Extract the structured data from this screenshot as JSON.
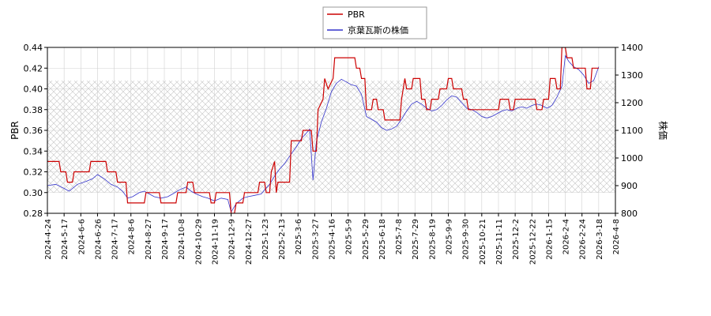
{
  "chart_data": {
    "type": "line",
    "ylabel_left": "PBR",
    "ylabel_right": "株価",
    "ylim_left": [
      0.28,
      0.44
    ],
    "ylim_right": [
      800,
      1400
    ],
    "yticks_left": [
      "0.28",
      "0.30",
      "0.32",
      "0.34",
      "0.36",
      "0.38",
      "0.40",
      "0.42",
      "0.44"
    ],
    "yticks_right": [
      "800",
      "900",
      "1000",
      "1100",
      "1200",
      "1300",
      "1400"
    ],
    "x_tick_labels": [
      "2024-4-24",
      "2024-5-17",
      "2024-6-6",
      "2024-6-26",
      "2024-7-17",
      "2024-8-6",
      "2024-8-27",
      "2024-9-17",
      "2024-10-8",
      "2024-10-29",
      "2024-11-19",
      "2024-12-9",
      "2024-12-27",
      "2025-1-23",
      "2025-2-13",
      "2025-3-6",
      "2025-3-27",
      "2025-4-16",
      "2025-5-9",
      "2025-5-29",
      "2025-6-18",
      "2025-7-8",
      "2025-7-29",
      "2025-8-19",
      "2025-9-9",
      "2025-9-30",
      "2025-10-21",
      "2025-11-11",
      "2025-12-2",
      "2025-12-22",
      "2026-1-15",
      "2026-2-4",
      "2026-2-24",
      "2026-3-18",
      "2026-4-8"
    ],
    "grid": true,
    "legend_position": "top-center",
    "series": [
      {
        "name": "PBR",
        "axis": "left",
        "color": "#cc0000",
        "points": [
          [
            0,
            0.33
          ],
          [
            0.7,
            0.33
          ],
          [
            0.8,
            0.32
          ],
          [
            1.1,
            0.32
          ],
          [
            1.2,
            0.31
          ],
          [
            1.5,
            0.31
          ],
          [
            1.6,
            0.32
          ],
          [
            2.5,
            0.32
          ],
          [
            2.6,
            0.33
          ],
          [
            3.5,
            0.33
          ],
          [
            3.6,
            0.32
          ],
          [
            4.1,
            0.32
          ],
          [
            4.2,
            0.31
          ],
          [
            4.7,
            0.31
          ],
          [
            4.8,
            0.29
          ],
          [
            5.8,
            0.29
          ],
          [
            5.9,
            0.3
          ],
          [
            6.7,
            0.3
          ],
          [
            6.8,
            0.29
          ],
          [
            7.7,
            0.29
          ],
          [
            7.8,
            0.3
          ],
          [
            8.3,
            0.3
          ],
          [
            8.4,
            0.31
          ],
          [
            8.7,
            0.31
          ],
          [
            8.8,
            0.3
          ],
          [
            9.7,
            0.3
          ],
          [
            9.8,
            0.29
          ],
          [
            10.0,
            0.29
          ],
          [
            10.1,
            0.3
          ],
          [
            10.9,
            0.3
          ],
          [
            11.0,
            0.28
          ],
          [
            11.2,
            0.28
          ],
          [
            11.3,
            0.29
          ],
          [
            11.7,
            0.29
          ],
          [
            11.8,
            0.3
          ],
          [
            12.6,
            0.3
          ],
          [
            12.7,
            0.31
          ],
          [
            13.0,
            0.31
          ],
          [
            13.1,
            0.3
          ],
          [
            13.3,
            0.3
          ],
          [
            13.4,
            0.32
          ],
          [
            13.6,
            0.33
          ],
          [
            13.7,
            0.3
          ],
          [
            13.8,
            0.31
          ],
          [
            14.5,
            0.31
          ],
          [
            14.6,
            0.35
          ],
          [
            15.2,
            0.35
          ],
          [
            15.3,
            0.36
          ],
          [
            15.8,
            0.36
          ],
          [
            15.9,
            0.34
          ],
          [
            16.1,
            0.34
          ],
          [
            16.2,
            0.38
          ],
          [
            16.5,
            0.39
          ],
          [
            16.6,
            0.41
          ],
          [
            16.8,
            0.4
          ],
          [
            17.1,
            0.41
          ],
          [
            17.2,
            0.43
          ],
          [
            18.4,
            0.43
          ],
          [
            18.5,
            0.42
          ],
          [
            18.7,
            0.42
          ],
          [
            18.8,
            0.41
          ],
          [
            19.0,
            0.41
          ],
          [
            19.1,
            0.38
          ],
          [
            19.4,
            0.38
          ],
          [
            19.5,
            0.39
          ],
          [
            19.7,
            0.39
          ],
          [
            19.8,
            0.38
          ],
          [
            20.1,
            0.38
          ],
          [
            20.2,
            0.37
          ],
          [
            21.1,
            0.37
          ],
          [
            21.2,
            0.39
          ],
          [
            21.4,
            0.41
          ],
          [
            21.5,
            0.4
          ],
          [
            21.8,
            0.4
          ],
          [
            21.9,
            0.41
          ],
          [
            22.3,
            0.41
          ],
          [
            22.4,
            0.39
          ],
          [
            22.6,
            0.39
          ],
          [
            22.7,
            0.38
          ],
          [
            22.9,
            0.38
          ],
          [
            23.0,
            0.39
          ],
          [
            23.4,
            0.39
          ],
          [
            23.5,
            0.4
          ],
          [
            23.9,
            0.4
          ],
          [
            24.0,
            0.41
          ],
          [
            24.2,
            0.41
          ],
          [
            24.3,
            0.4
          ],
          [
            24.8,
            0.4
          ],
          [
            24.9,
            0.39
          ],
          [
            25.1,
            0.39
          ],
          [
            25.2,
            0.38
          ],
          [
            27.0,
            0.38
          ],
          [
            27.1,
            0.39
          ],
          [
            27.6,
            0.39
          ],
          [
            27.7,
            0.38
          ],
          [
            27.9,
            0.38
          ],
          [
            28.0,
            0.39
          ],
          [
            29.2,
            0.39
          ],
          [
            29.3,
            0.38
          ],
          [
            29.6,
            0.38
          ],
          [
            29.7,
            0.39
          ],
          [
            30.0,
            0.39
          ],
          [
            30.1,
            0.41
          ],
          [
            30.4,
            0.41
          ],
          [
            30.5,
            0.4
          ],
          [
            30.7,
            0.4
          ],
          [
            30.8,
            0.44
          ],
          [
            31.0,
            0.44
          ],
          [
            31.1,
            0.43
          ],
          [
            31.4,
            0.43
          ],
          [
            31.5,
            0.42
          ],
          [
            32.2,
            0.42
          ],
          [
            32.3,
            0.4
          ],
          [
            32.5,
            0.4
          ],
          [
            32.6,
            0.42
          ],
          [
            33.0,
            0.42
          ]
        ]
      },
      {
        "name": "京葉瓦斯の株価",
        "axis": "right",
        "color": "#3333cc",
        "points": [
          [
            0,
            900
          ],
          [
            0.5,
            905
          ],
          [
            1.0,
            890
          ],
          [
            1.3,
            880
          ],
          [
            1.8,
            905
          ],
          [
            2.3,
            915
          ],
          [
            2.7,
            925
          ],
          [
            3.0,
            940
          ],
          [
            3.4,
            925
          ],
          [
            3.8,
            905
          ],
          [
            4.2,
            895
          ],
          [
            4.5,
            880
          ],
          [
            4.8,
            855
          ],
          [
            5.1,
            860
          ],
          [
            5.5,
            875
          ],
          [
            5.8,
            880
          ],
          [
            6.1,
            870
          ],
          [
            6.4,
            860
          ],
          [
            6.8,
            855
          ],
          [
            7.2,
            860
          ],
          [
            7.5,
            870
          ],
          [
            7.9,
            885
          ],
          [
            8.3,
            895
          ],
          [
            8.6,
            880
          ],
          [
            8.9,
            870
          ],
          [
            9.3,
            860
          ],
          [
            9.6,
            855
          ],
          [
            10.0,
            845
          ],
          [
            10.4,
            855
          ],
          [
            10.8,
            850
          ],
          [
            11.0,
            805
          ],
          [
            11.3,
            835
          ],
          [
            11.7,
            855
          ],
          [
            12.0,
            860
          ],
          [
            12.4,
            865
          ],
          [
            12.8,
            870
          ],
          [
            13.0,
            885
          ],
          [
            13.3,
            905
          ],
          [
            13.6,
            935
          ],
          [
            13.9,
            960
          ],
          [
            14.2,
            980
          ],
          [
            14.6,
            1015
          ],
          [
            14.9,
            1040
          ],
          [
            15.2,
            1070
          ],
          [
            15.5,
            1090
          ],
          [
            15.7,
            1105
          ],
          [
            15.9,
            920
          ],
          [
            16.1,
            1060
          ],
          [
            16.4,
            1130
          ],
          [
            16.7,
            1180
          ],
          [
            17.0,
            1240
          ],
          [
            17.3,
            1270
          ],
          [
            17.6,
            1285
          ],
          [
            17.9,
            1275
          ],
          [
            18.2,
            1265
          ],
          [
            18.5,
            1260
          ],
          [
            18.8,
            1230
          ],
          [
            19.1,
            1150
          ],
          [
            19.4,
            1140
          ],
          [
            19.7,
            1130
          ],
          [
            20.0,
            1110
          ],
          [
            20.3,
            1100
          ],
          [
            20.6,
            1105
          ],
          [
            20.9,
            1115
          ],
          [
            21.2,
            1140
          ],
          [
            21.5,
            1170
          ],
          [
            21.8,
            1195
          ],
          [
            22.1,
            1205
          ],
          [
            22.4,
            1195
          ],
          [
            22.7,
            1180
          ],
          [
            23.0,
            1170
          ],
          [
            23.3,
            1175
          ],
          [
            23.6,
            1190
          ],
          [
            23.9,
            1210
          ],
          [
            24.2,
            1225
          ],
          [
            24.5,
            1220
          ],
          [
            24.8,
            1200
          ],
          [
            25.1,
            1180
          ],
          [
            25.4,
            1175
          ],
          [
            25.7,
            1165
          ],
          [
            26.0,
            1150
          ],
          [
            26.3,
            1145
          ],
          [
            26.6,
            1150
          ],
          [
            26.9,
            1160
          ],
          [
            27.2,
            1170
          ],
          [
            27.5,
            1175
          ],
          [
            27.8,
            1170
          ],
          [
            28.1,
            1180
          ],
          [
            28.4,
            1185
          ],
          [
            28.7,
            1180
          ],
          [
            29.0,
            1190
          ],
          [
            29.3,
            1195
          ],
          [
            29.6,
            1190
          ],
          [
            29.9,
            1180
          ],
          [
            30.2,
            1190
          ],
          [
            30.5,
            1220
          ],
          [
            30.8,
            1260
          ],
          [
            31.0,
            1370
          ],
          [
            31.2,
            1350
          ],
          [
            31.5,
            1330
          ],
          [
            31.8,
            1320
          ],
          [
            32.1,
            1300
          ],
          [
            32.4,
            1270
          ],
          [
            32.7,
            1280
          ],
          [
            33.0,
            1330
          ]
        ]
      }
    ]
  },
  "legend": {
    "items": [
      {
        "label": "PBR",
        "color": "#cc0000"
      },
      {
        "label": "京葉瓦斯の株価",
        "color": "#3333cc"
      }
    ]
  }
}
